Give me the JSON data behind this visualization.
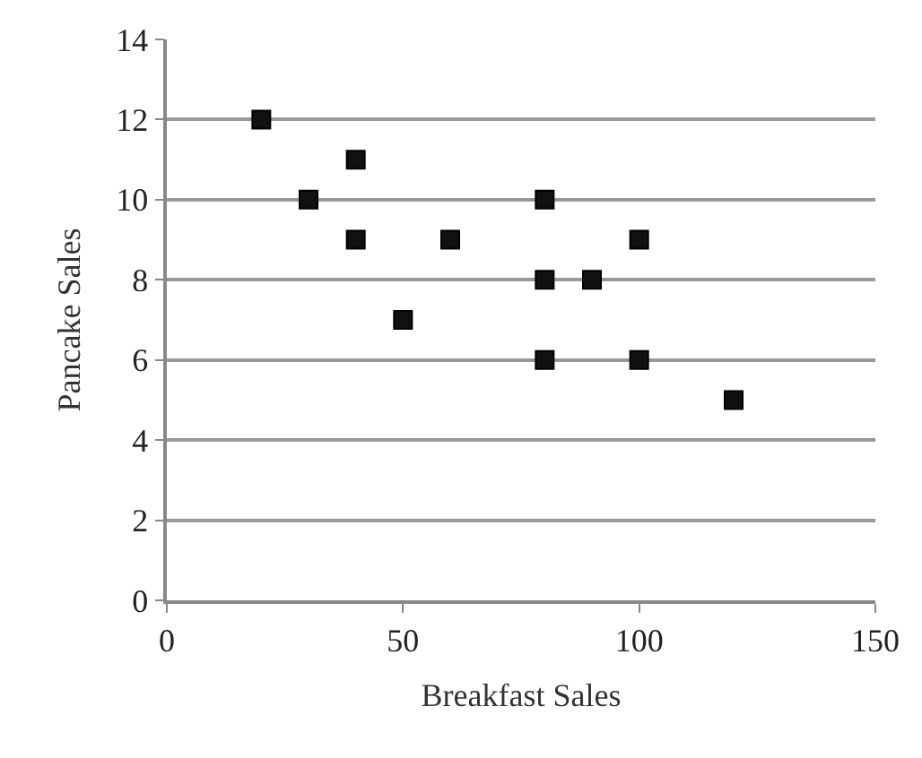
{
  "chart_data": {
    "type": "scatter",
    "xlabel": "Breakfast Sales",
    "ylabel": "Pancake Sales",
    "x": [
      20,
      30,
      40,
      40,
      50,
      60,
      80,
      80,
      80,
      90,
      100,
      100,
      120
    ],
    "series": [
      {
        "color": "#111111",
        "values": [
          12,
          10,
          11,
          9,
          7,
          9,
          10,
          8,
          6,
          8,
          9,
          6,
          5
        ]
      }
    ],
    "xlim": [
      0,
      150
    ],
    "xticks": [
      0,
      50,
      100,
      150
    ],
    "ylim": [
      0,
      14
    ],
    "yticks": [
      0,
      2,
      4,
      6,
      8,
      10,
      12,
      14
    ],
    "grid": "y",
    "marker": "square"
  }
}
